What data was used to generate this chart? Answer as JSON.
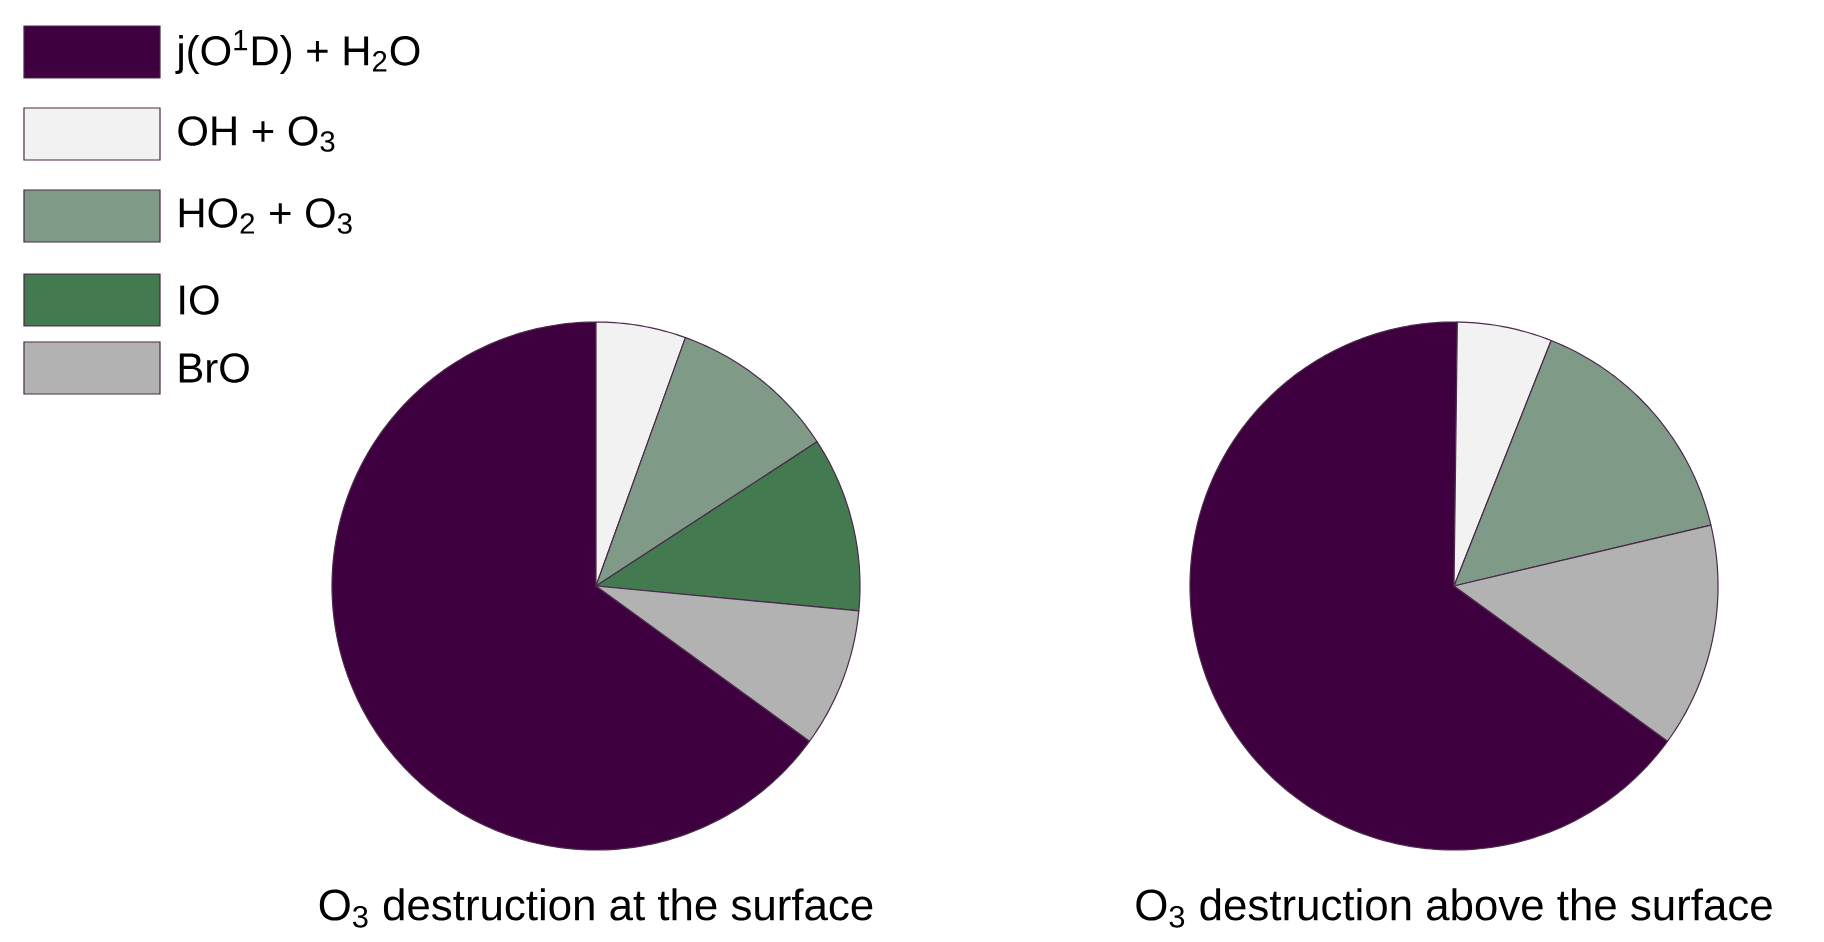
{
  "chart_data": [
    {
      "type": "pie",
      "title": "O$_{3}$ destruction at the surface",
      "legend": "top left",
      "categories": [
        "j(O$^{1}$D) + H$_{2}$O",
        "OH + O$_{3}$",
        "HO$_{2}$ + O$_{3}$",
        "IO",
        "BrO"
      ],
      "values": [
        65,
        5.5,
        10.3,
        10.7,
        8.5
      ],
      "colors": [
        "#3f003f",
        "#f2f2f2",
        "#7f9a86",
        "#437a50",
        "#b2b2b2"
      ]
    },
    {
      "type": "pie",
      "title": "O$_{3}$ destruction above the surface",
      "categories": [
        null,
        null,
        null,
        null
      ],
      "values": [
        65.2,
        5.8,
        15.3,
        13.7
      ],
      "colors": [
        "#3f003f",
        "#f2f2f2",
        "#7f9a86",
        "#b2b2b2"
      ]
    }
  ]
}
